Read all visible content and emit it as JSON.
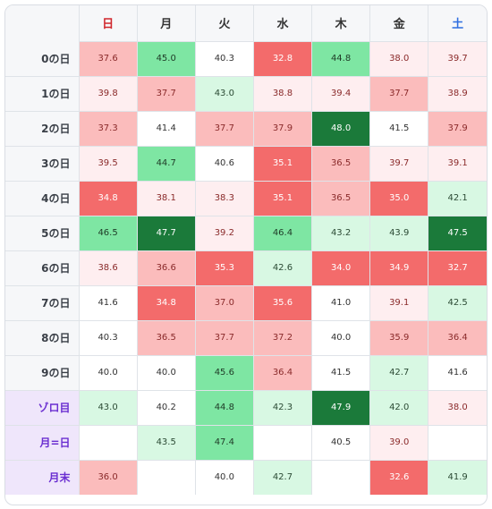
{
  "header": {
    "days": [
      {
        "label": "日",
        "color": "#d0282e"
      },
      {
        "label": "月",
        "color": "#333333"
      },
      {
        "label": "火",
        "color": "#333333"
      },
      {
        "label": "水",
        "color": "#333333"
      },
      {
        "label": "木",
        "color": "#333333"
      },
      {
        "label": "金",
        "color": "#333333"
      },
      {
        "label": "土",
        "color": "#2f6fe0"
      }
    ]
  },
  "palette": {
    "dark_green": "#1b7a3a",
    "green": "#7ee6a3",
    "light_green": "#d8f8e3",
    "dark_red": "#f36b6b",
    "red": "#fbbcbc",
    "light_red": "#feeef0",
    "neutral": "#ffffff"
  },
  "rows": [
    {
      "label": "0の日",
      "special": false,
      "cells": [
        "37.6",
        "45.0",
        "40.3",
        "32.8",
        "44.8",
        "38.0",
        "39.7"
      ]
    },
    {
      "label": "1の日",
      "special": false,
      "cells": [
        "39.8",
        "37.7",
        "43.0",
        "38.8",
        "39.4",
        "37.7",
        "38.9"
      ]
    },
    {
      "label": "2の日",
      "special": false,
      "cells": [
        "37.3",
        "41.4",
        "37.7",
        "37.9",
        "48.0",
        "41.5",
        "37.9"
      ]
    },
    {
      "label": "3の日",
      "special": false,
      "cells": [
        "39.5",
        "44.7",
        "40.6",
        "35.1",
        "36.5",
        "39.7",
        "39.1"
      ]
    },
    {
      "label": "4の日",
      "special": false,
      "cells": [
        "34.8",
        "38.1",
        "38.3",
        "35.1",
        "36.5",
        "35.0",
        "42.1"
      ]
    },
    {
      "label": "5の日",
      "special": false,
      "cells": [
        "46.5",
        "47.7",
        "39.2",
        "46.4",
        "43.2",
        "43.9",
        "47.5"
      ]
    },
    {
      "label": "6の日",
      "special": false,
      "cells": [
        "38.6",
        "36.6",
        "35.3",
        "42.6",
        "34.0",
        "34.9",
        "32.7"
      ]
    },
    {
      "label": "7の日",
      "special": false,
      "cells": [
        "41.6",
        "34.8",
        "37.0",
        "35.6",
        "41.0",
        "39.1",
        "42.5"
      ]
    },
    {
      "label": "8の日",
      "special": false,
      "cells": [
        "40.3",
        "36.5",
        "37.7",
        "37.2",
        "40.0",
        "35.9",
        "36.4"
      ]
    },
    {
      "label": "9の日",
      "special": false,
      "cells": [
        "40.0",
        "40.0",
        "45.6",
        "36.4",
        "41.5",
        "42.7",
        "41.6"
      ]
    },
    {
      "label": "ゾロ目",
      "special": true,
      "cells": [
        "43.0",
        "40.2",
        "44.8",
        "42.3",
        "47.9",
        "42.0",
        "38.0"
      ]
    },
    {
      "label": "月=日",
      "special": true,
      "cells": [
        "",
        "43.5",
        "47.4",
        "",
        "40.5",
        "39.0",
        ""
      ]
    },
    {
      "label": "月末",
      "special": true,
      "cells": [
        "36.0",
        "",
        "40.0",
        "42.7",
        "",
        "32.6",
        "41.9"
      ]
    }
  ]
}
